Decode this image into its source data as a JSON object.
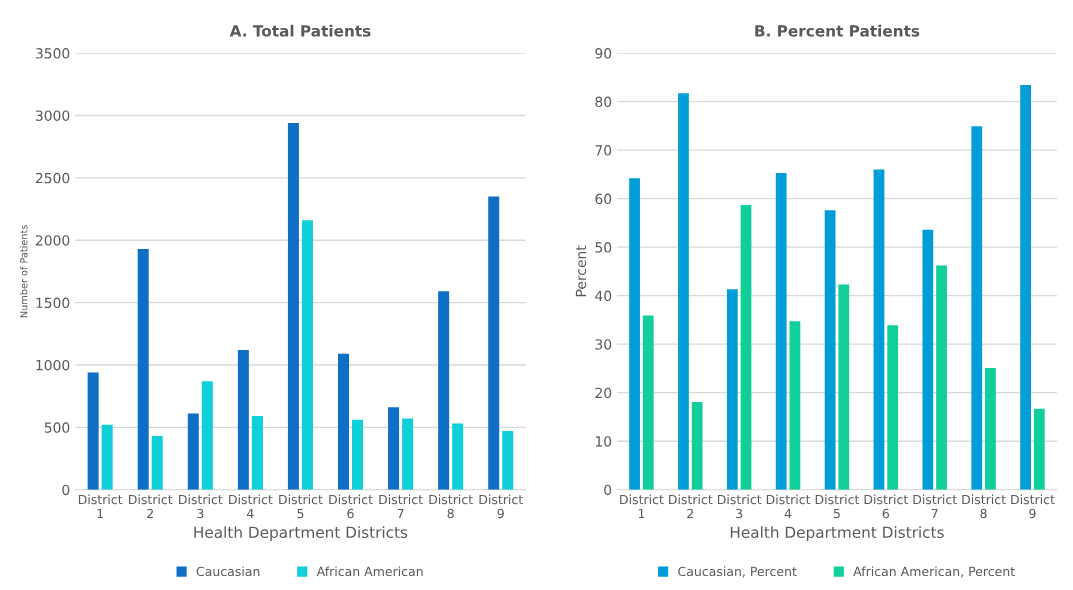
{
  "chart_data": [
    {
      "type": "bar",
      "title": "A. Total Patients",
      "xlabel": "Health Department Districts",
      "ylabel": "Number of Patients",
      "categories": [
        "District\n1",
        "District\n2",
        "District\n3",
        "District\n4",
        "District\n5",
        "District\n6",
        "District\n7",
        "District\n8",
        "District\n9"
      ],
      "series": [
        {
          "name": "Caucasian",
          "color": "#0f6fc6",
          "values": [
            940,
            1930,
            610,
            1120,
            2940,
            1090,
            660,
            1590,
            2350
          ]
        },
        {
          "name": "African American",
          "color": "#0fcfd8",
          "values": [
            520,
            430,
            870,
            590,
            2160,
            560,
            570,
            530,
            470
          ]
        }
      ],
      "ylim": [
        0,
        3500
      ],
      "yticks": [
        0,
        500,
        1000,
        1500,
        2000,
        2500,
        3000,
        3500
      ],
      "grid": "y",
      "legend": "bottom"
    },
    {
      "type": "bar",
      "title": "B. Percent Patients",
      "xlabel": "Health Department Districts",
      "ylabel": "Percent",
      "categories": [
        "District\n1",
        "District\n2",
        "District\n3",
        "District\n4",
        "District\n5",
        "District\n6",
        "District\n7",
        "District\n8",
        "District\n9"
      ],
      "series": [
        {
          "name": "Caucasian, Percent",
          "color": "#009dd9",
          "values": [
            64.2,
            81.7,
            41.3,
            65.3,
            57.6,
            66.0,
            53.6,
            74.9,
            83.4
          ]
        },
        {
          "name": "African American, Percent",
          "color": "#10cf9b",
          "values": [
            35.9,
            18.1,
            58.7,
            34.7,
            42.3,
            33.9,
            46.2,
            25.1,
            16.7
          ]
        }
      ],
      "ylim": [
        0,
        90
      ],
      "yticks": [
        0,
        10,
        20,
        30,
        40,
        50,
        60,
        70,
        80,
        90
      ],
      "grid": "y",
      "legend": "bottom"
    }
  ]
}
